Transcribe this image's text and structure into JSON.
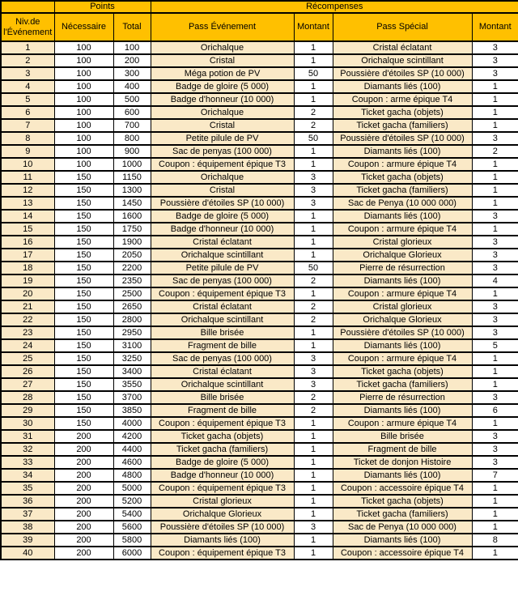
{
  "colors": {
    "header_bg": "#FFC000",
    "row_accent_bg": "#FAE9C7",
    "row_plain_bg": "#FFFFFF",
    "border": "#000000"
  },
  "table": {
    "header": {
      "corner": "",
      "points_group": "Points",
      "rewards_group": "Récompenses",
      "niveau_line1": "Niv.de",
      "niveau_line2": "l'Événement",
      "necessaire": "Nécessaire",
      "total": "Total",
      "pass_evenement": "Pass Événement",
      "montant_evenement": "Montant",
      "pass_special": "Pass Spécial",
      "montant_special": "Montant"
    },
    "columns": [
      "niveau",
      "points-necessaire",
      "points-total",
      "pass-evenement",
      "montant-evenement",
      "pass-special",
      "montant-special"
    ],
    "rows": [
      [
        1,
        100,
        100,
        "Orichalque",
        1,
        "Cristal éclatant",
        3
      ],
      [
        2,
        100,
        200,
        "Cristal",
        1,
        "Orichalque scintillant",
        3
      ],
      [
        3,
        100,
        300,
        "Méga potion de PV",
        50,
        "Poussière d'étoiles SP (10 000)",
        3
      ],
      [
        4,
        100,
        400,
        "Badge de gloire (5 000)",
        1,
        "Diamants liés (100)",
        1
      ],
      [
        5,
        100,
        500,
        "Badge d'honneur (10 000)",
        1,
        "Coupon : arme épique T4",
        1
      ],
      [
        6,
        100,
        600,
        "Orichalque",
        2,
        "Ticket gacha (objets)",
        1
      ],
      [
        7,
        100,
        700,
        "Cristal",
        2,
        "Ticket gacha (familiers)",
        1
      ],
      [
        8,
        100,
        800,
        "Petite pilule de PV",
        50,
        "Poussière d'étoiles SP (10 000)",
        3
      ],
      [
        9,
        100,
        900,
        "Sac de penyas (100 000)",
        1,
        "Diamants liés (100)",
        2
      ],
      [
        10,
        100,
        1000,
        "Coupon : équipement épique T3",
        1,
        "Coupon : armure épique T4",
        1
      ],
      [
        11,
        150,
        1150,
        "Orichalque",
        3,
        "Ticket gacha (objets)",
        1
      ],
      [
        12,
        150,
        1300,
        "Cristal",
        3,
        "Ticket gacha (familiers)",
        1
      ],
      [
        13,
        150,
        1450,
        "Poussière d'étoiles SP (10 000)",
        3,
        "Sac de Penya (10 000 000)",
        1
      ],
      [
        14,
        150,
        1600,
        "Badge de gloire (5 000)",
        1,
        "Diamants liés (100)",
        3
      ],
      [
        15,
        150,
        1750,
        "Badge d'honneur (10 000)",
        1,
        "Coupon : armure épique T4",
        1
      ],
      [
        16,
        150,
        1900,
        "Cristal éclatant",
        1,
        "Cristal glorieux",
        3
      ],
      [
        17,
        150,
        2050,
        "Orichalque scintillant",
        1,
        "Orichalque Glorieux",
        3
      ],
      [
        18,
        150,
        2200,
        "Petite pilule de PV",
        50,
        "Pierre de résurrection",
        3
      ],
      [
        19,
        150,
        2350,
        "Sac de penyas (100 000)",
        2,
        "Diamants liés (100)",
        4
      ],
      [
        20,
        150,
        2500,
        "Coupon : équipement épique T3",
        1,
        "Coupon : armure épique T4",
        1
      ],
      [
        21,
        150,
        2650,
        "Cristal éclatant",
        2,
        "Cristal glorieux",
        3
      ],
      [
        22,
        150,
        2800,
        "Orichalque scintillant",
        2,
        "Orichalque Glorieux",
        3
      ],
      [
        23,
        150,
        2950,
        "Bille brisée",
        1,
        "Poussière d'étoiles SP (10 000)",
        3
      ],
      [
        24,
        150,
        3100,
        "Fragment de bille",
        1,
        "Diamants liés (100)",
        5
      ],
      [
        25,
        150,
        3250,
        "Sac de penyas (100 000)",
        3,
        "Coupon : armure épique T4",
        1
      ],
      [
        26,
        150,
        3400,
        "Cristal éclatant",
        3,
        "Ticket gacha (objets)",
        1
      ],
      [
        27,
        150,
        3550,
        "Orichalque scintillant",
        3,
        "Ticket gacha (familiers)",
        1
      ],
      [
        28,
        150,
        3700,
        "Bille brisée",
        2,
        "Pierre de résurrection",
        3
      ],
      [
        29,
        150,
        3850,
        "Fragment de bille",
        2,
        "Diamants liés (100)",
        6
      ],
      [
        30,
        150,
        4000,
        "Coupon : équipement épique T3",
        1,
        "Coupon : armure épique T4",
        1
      ],
      [
        31,
        200,
        4200,
        "Ticket gacha (objets)",
        1,
        "Bille brisée",
        3
      ],
      [
        32,
        200,
        4400,
        "Ticket gacha (familiers)",
        1,
        "Fragment de bille",
        3
      ],
      [
        33,
        200,
        4600,
        "Badge de gloire (5 000)",
        1,
        "Ticket de donjon Histoire",
        3
      ],
      [
        34,
        200,
        4800,
        "Badge d'honneur (10 000)",
        1,
        "Diamants liés (100)",
        7
      ],
      [
        35,
        200,
        5000,
        "Coupon : équipement épique T3",
        1,
        "Coupon : accessoire épique T4",
        1
      ],
      [
        36,
        200,
        5200,
        "Cristal glorieux",
        1,
        "Ticket gacha (objets)",
        1
      ],
      [
        37,
        200,
        5400,
        "Orichalque Glorieux",
        1,
        "Ticket gacha (familiers)",
        1
      ],
      [
        38,
        200,
        5600,
        "Poussière d'étoiles SP (10 000)",
        3,
        "Sac de Penya (10 000 000)",
        1
      ],
      [
        39,
        200,
        5800,
        "Diamants liés (100)",
        1,
        "Diamants liés (100)",
        8
      ],
      [
        40,
        200,
        6000,
        "Coupon : équipement épique T3",
        1,
        "Coupon : accessoire épique T4",
        1
      ]
    ]
  }
}
